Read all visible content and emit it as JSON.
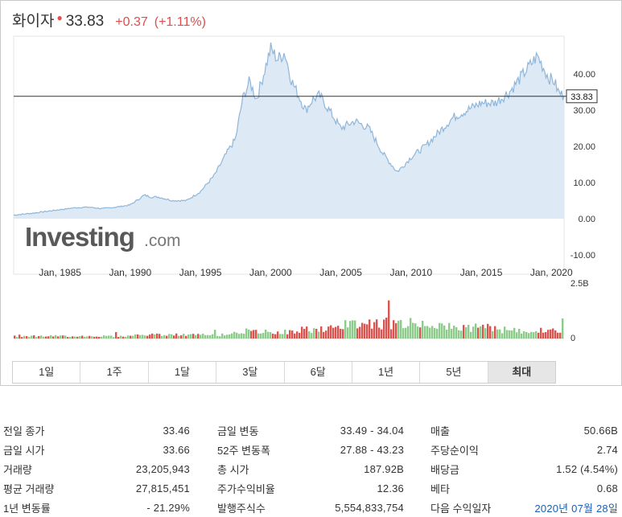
{
  "header": {
    "name": "화이자",
    "price": "33.83",
    "change": "+0.37",
    "change_pct": "(+1.11%)",
    "change_color": "#e34c4c"
  },
  "chart_data": {
    "type": "area",
    "x_tick_labels": [
      "Jan, 1985",
      "Jan, 1990",
      "Jan, 1995",
      "Jan, 2000",
      "Jan, 2005",
      "Jan, 2010",
      "Jan, 2015",
      "Jan, 2020"
    ],
    "x_ticks_year": [
      1985,
      1990,
      1995,
      2000,
      2005,
      2010,
      2015,
      2020
    ],
    "x_range": [
      1981.7,
      2020.9
    ],
    "y_tick_labels": [
      "40.00",
      "30.00",
      "20.00",
      "10.00",
      "0.00",
      "-10.00"
    ],
    "y_ticks": [
      40,
      30,
      20,
      10,
      0,
      -10
    ],
    "y_range": [
      -12,
      49
    ],
    "current_price_label": "33.83",
    "current_price": 33.83,
    "price_series": {
      "x": [
        1981.7,
        1983,
        1984,
        1985,
        1986,
        1987,
        1988,
        1989,
        1990,
        1991,
        1991.5,
        1992,
        1993,
        1994,
        1995,
        1996,
        1997,
        1997.5,
        1998,
        1998.5,
        1999,
        1999.5,
        2000,
        2000.5,
        2001,
        2001.5,
        2002,
        2002.5,
        2003,
        2003.5,
        2004,
        2005,
        2006,
        2007,
        2008,
        2009,
        2009.3,
        2010,
        2011,
        2012,
        2013,
        2014,
        2015,
        2016,
        2017,
        2018,
        2019,
        2019.4,
        2019.8,
        2020.2,
        2020.5,
        2020.9
      ],
      "y": [
        1.0,
        1.5,
        2.0,
        2.5,
        3.0,
        3.2,
        2.8,
        3.2,
        3.8,
        6.5,
        6.0,
        6.0,
        5.0,
        5.0,
        7.5,
        12.0,
        19.0,
        22.0,
        33.0,
        38.0,
        33.0,
        40.0,
        47.0,
        44.0,
        46.0,
        38.0,
        34.0,
        30.0,
        33.0,
        34.0,
        31.0,
        25.0,
        27.0,
        25.0,
        18.0,
        13.0,
        14.0,
        17.0,
        20.0,
        24.0,
        28.0,
        30.0,
        32.0,
        32.0,
        35.0,
        40.0,
        45.0,
        42.0,
        39.0,
        38.0,
        35.0,
        33.83
      ]
    },
    "volume_axis_labels": [
      "2.5B",
      "0"
    ],
    "volume_range": [
      0,
      2.5
    ],
    "volume_colors": {
      "up": "#8ccb8a",
      "down": "#d9534f"
    },
    "line_color": "#8fb6da",
    "area_color": "#dde9f4"
  },
  "logo": {
    "bold": "Investing",
    "light": ".com"
  },
  "tabs": [
    {
      "label": "1일"
    },
    {
      "label": "1주"
    },
    {
      "label": "1달"
    },
    {
      "label": "3달"
    },
    {
      "label": "6달"
    },
    {
      "label": "1년"
    },
    {
      "label": "5년"
    },
    {
      "label": "최대",
      "active": true
    }
  ],
  "stats": {
    "col1": [
      {
        "label": "전일 종가",
        "value": "33.46"
      },
      {
        "label": "금일 시가",
        "value": "33.66"
      },
      {
        "label": "거래량",
        "value": "23,205,943"
      },
      {
        "label": "평균 거래량",
        "value": "27,815,451"
      },
      {
        "label": "1년 변동률",
        "value": "- 21.29%"
      }
    ],
    "col2": [
      {
        "label": "금일 변동",
        "value": "33.49 - 34.04"
      },
      {
        "label": "52주 변동폭",
        "value": "27.88 - 43.23"
      },
      {
        "label": "총 시가",
        "value": "187.92B"
      },
      {
        "label": "주가수익비율",
        "value": "12.36"
      },
      {
        "label": "발행주식수",
        "value": "5,554,833,754"
      }
    ],
    "col3": [
      {
        "label": "매출",
        "value": "50.66B"
      },
      {
        "label": "주당순이익",
        "value": "2.74"
      },
      {
        "label": "배당금",
        "value": "1.52 (4.54%)"
      },
      {
        "label": "베타",
        "value": "0.68"
      },
      {
        "label": "다음 수익일자",
        "value": "2020년 07월 28일",
        "link": true
      }
    ]
  }
}
